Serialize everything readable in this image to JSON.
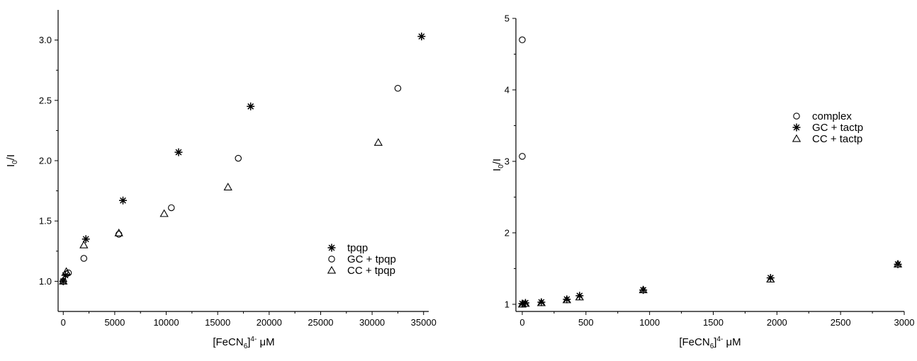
{
  "chart_data": [
    {
      "type": "scatter",
      "xlabel": "[FeCN",
      "xlabel_sub": "6",
      "xlabel_sup": "4-",
      "xlabel_unit": " μM",
      "ylabel": "I",
      "ylabel_sub": "0",
      "ylabel_tail": "/I",
      "xlim": [
        -500,
        35500
      ],
      "ylim": [
        0.75,
        3.25
      ],
      "xticks": [
        0,
        5000,
        10000,
        15000,
        20000,
        25000,
        30000,
        35000
      ],
      "xtick_labels": [
        "0",
        "5000",
        "10000",
        "15000",
        "20000",
        "25000",
        "30000",
        "35000"
      ],
      "yticks": [
        1.0,
        1.5,
        2.0,
        2.5,
        3.0
      ],
      "ytick_labels": [
        "1.0",
        "1.5",
        "2.0",
        "2.5",
        "3.0"
      ],
      "legend_position": "lower-right",
      "series": [
        {
          "name": "tpqp",
          "marker": "asterisk",
          "x": [
            0,
            200,
            2200,
            5800,
            11200,
            18200,
            34800
          ],
          "y": [
            1.0,
            1.05,
            1.35,
            1.67,
            2.07,
            2.45,
            3.03
          ]
        },
        {
          "name": "GC + tpqp",
          "marker": "circle",
          "x": [
            0,
            300,
            500,
            2000,
            5400,
            10500,
            17000,
            32500
          ],
          "y": [
            1.0,
            1.06,
            1.07,
            1.19,
            1.39,
            1.61,
            2.02,
            2.6
          ]
        },
        {
          "name": "CC + tpqp",
          "marker": "triangle",
          "x": [
            0,
            300,
            2000,
            5400,
            9800,
            16000,
            30600
          ],
          "y": [
            1.0,
            1.08,
            1.3,
            1.4,
            1.56,
            1.78,
            2.15
          ]
        }
      ]
    },
    {
      "type": "scatter",
      "xlabel": "[FeCN",
      "xlabel_sub": "6",
      "xlabel_sup": "4-",
      "xlabel_unit": " μM",
      "ylabel": "I",
      "ylabel_sub": "0",
      "ylabel_tail": "/I",
      "xlim": [
        -50,
        3000
      ],
      "ylim": [
        0.9,
        5.0
      ],
      "xticks": [
        0,
        500,
        1000,
        1500,
        2000,
        2500,
        3000
      ],
      "xtick_labels": [
        "0",
        "500",
        "1000",
        "1500",
        "2000",
        "2500",
        "3000"
      ],
      "yticks": [
        1,
        2,
        3,
        4,
        5
      ],
      "ytick_labels": [
        "1",
        "2",
        "3",
        "4",
        "5"
      ],
      "legend_position": "upper-right",
      "series": [
        {
          "name": "complex",
          "marker": "circle",
          "x": [
            0,
            0
          ],
          "y": [
            4.7,
            3.07
          ]
        },
        {
          "name": "GC + tactp",
          "marker": "asterisk",
          "x": [
            0,
            25,
            150,
            350,
            450,
            950,
            1950,
            2950
          ],
          "y": [
            1.01,
            1.02,
            1.03,
            1.07,
            1.12,
            1.2,
            1.37,
            1.56
          ]
        },
        {
          "name": "CC + tactp",
          "marker": "triangle",
          "x": [
            0,
            25,
            150,
            350,
            450,
            950,
            1950,
            2950
          ],
          "y": [
            1.0,
            1.01,
            1.02,
            1.06,
            1.1,
            1.2,
            1.35,
            1.56
          ]
        }
      ]
    }
  ]
}
